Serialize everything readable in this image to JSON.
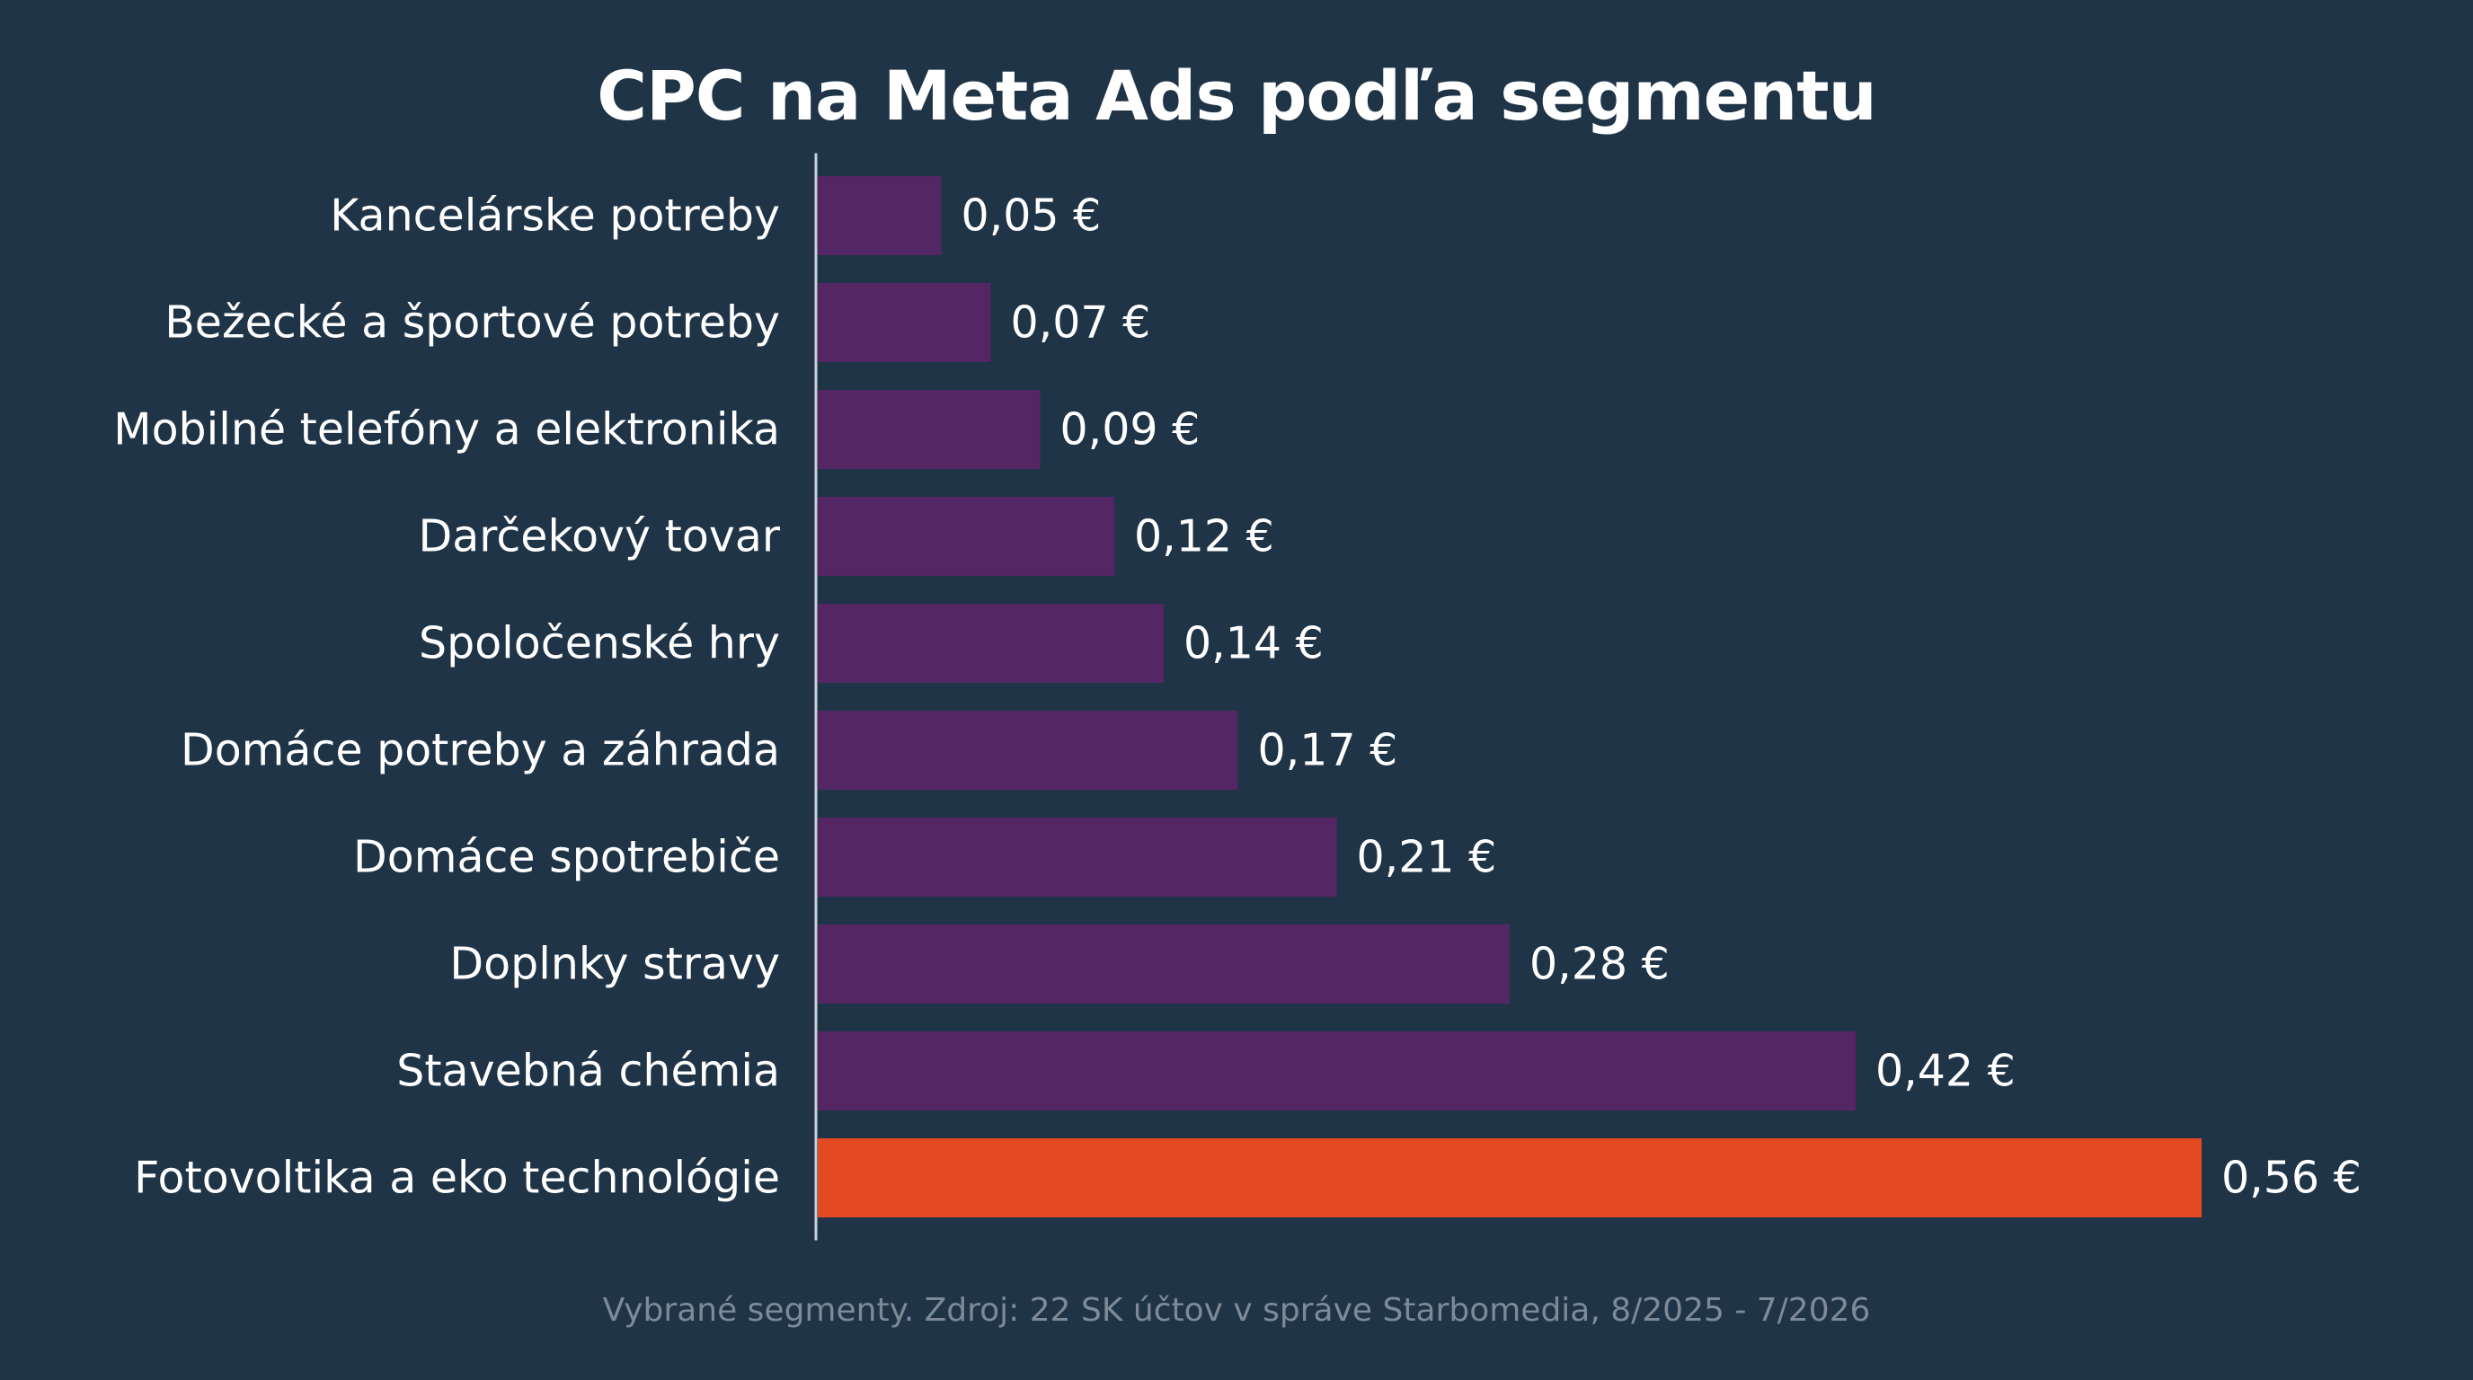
{
  "chart_data": {
    "type": "bar",
    "orientation": "horizontal",
    "title": "CPC na Meta Ads podľa segmentu",
    "xlabel": "",
    "ylabel": "",
    "grid": false,
    "legend": "none",
    "categories": [
      "Kancelárske potreby",
      "Bežecké a športové potreby",
      "Mobilné telefóny a elektronika",
      "Darčekový tovar",
      "Spoločenské hry",
      "Domáce potreby a záhrada",
      "Domáce spotrebiče",
      "Doplnky stravy",
      "Stavebná chémia",
      "Fotovoltika a eko technológie"
    ],
    "values": [
      0.05,
      0.07,
      0.09,
      0.12,
      0.14,
      0.17,
      0.21,
      0.28,
      0.42,
      0.56
    ],
    "value_labels": [
      "0,05 €",
      "0,07 €",
      "0,09 €",
      "0,12 €",
      "0,14 €",
      "0,17 €",
      "0,21 €",
      "0,28 €",
      "0,42 €",
      "0,56 €"
    ],
    "highlight_index": 9,
    "colors": {
      "bar": "#542664",
      "highlight": "#e34a22",
      "background": "#1f3447",
      "axis": "#c9d1d9",
      "text": "#ffffff",
      "note": "#7d8a97"
    },
    "xlim": [
      0,
      0.56
    ]
  },
  "footer": {
    "note": "Vybrané segmenty. Zdroj: 22 SK účtov v správe Starbomedia, 8/2025 - 7/2026"
  }
}
